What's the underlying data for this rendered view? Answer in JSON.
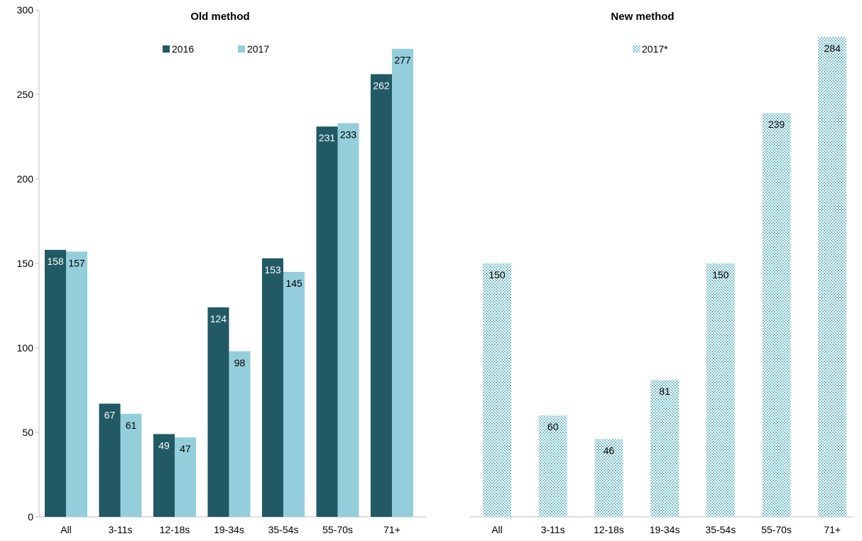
{
  "chart_data": [
    {
      "type": "bar",
      "title": "Old method",
      "categories": [
        "All",
        "3-11s",
        "12-18s",
        "19-34s",
        "35-54s",
        "55-70s",
        "71+"
      ],
      "series": [
        {
          "name": "2016",
          "values": [
            158,
            67,
            49,
            124,
            153,
            231,
            262
          ],
          "color": "#215965",
          "label_color": "#ffffff"
        },
        {
          "name": "2017",
          "values": [
            157,
            61,
            47,
            98,
            145,
            233,
            277
          ],
          "color": "#94cedb",
          "label_color": "#000000"
        }
      ],
      "ylim": [
        0,
        300
      ],
      "yticks": [
        "0",
        "50",
        "100",
        "150",
        "200",
        "250",
        "300"
      ],
      "legend_position": "top"
    },
    {
      "type": "bar",
      "title": "New method",
      "categories": [
        "All",
        "3-11s",
        "12-18s",
        "19-34s",
        "35-54s",
        "55-70s",
        "71+"
      ],
      "series": [
        {
          "name": "2017*",
          "values": [
            150,
            60,
            46,
            81,
            150,
            239,
            284
          ],
          "color": "#94cedb",
          "pattern": "checker",
          "label_color": "#000000"
        }
      ],
      "ylim": [
        0,
        300
      ],
      "legend_position": "top"
    }
  ]
}
